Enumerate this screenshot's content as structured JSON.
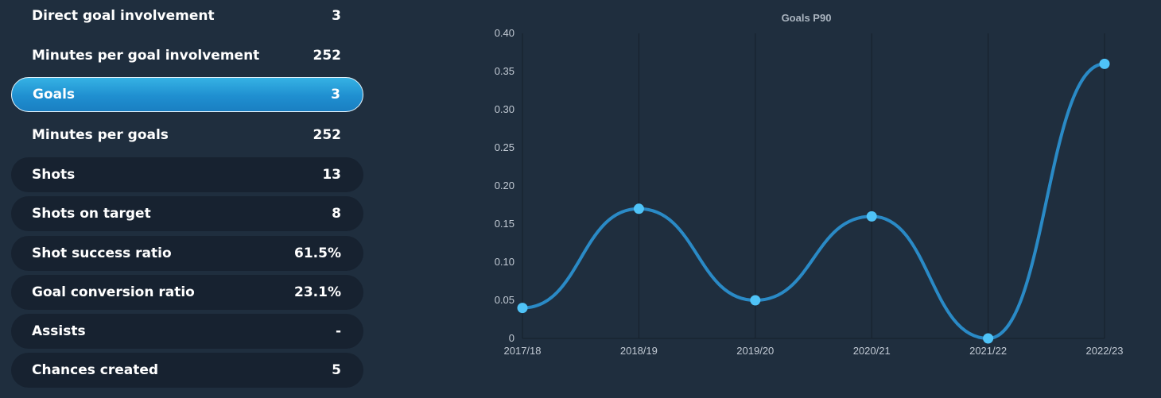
{
  "stats": [
    {
      "label": "Direct goal involvement",
      "value": "3",
      "style": "plain"
    },
    {
      "label": "Minutes per goal involvement",
      "value": "252",
      "style": "plain"
    },
    {
      "label": "Goals",
      "value": "3",
      "style": "active"
    },
    {
      "label": "Minutes per goals",
      "value": "252",
      "style": "plain"
    },
    {
      "label": "Shots",
      "value": "13",
      "style": "pill"
    },
    {
      "label": "Shots on target",
      "value": "8",
      "style": "pill"
    },
    {
      "label": "Shot success ratio",
      "value": "61.5%",
      "style": "pill"
    },
    {
      "label": "Goal conversion ratio",
      "value": "23.1%",
      "style": "pill"
    },
    {
      "label": "Assists",
      "value": "-",
      "style": "pill"
    },
    {
      "label": "Chances created",
      "value": "5",
      "style": "pill"
    }
  ],
  "chart_data": {
    "type": "line",
    "title": "Goals P90",
    "categories": [
      "2017/18",
      "2018/19",
      "2019/20",
      "2020/21",
      "2021/22",
      "2022/23"
    ],
    "series": [
      {
        "values": [
          0.04,
          0.17,
          0.05,
          0.16,
          0.0,
          0.36
        ]
      }
    ],
    "ylim": [
      0,
      0.4
    ],
    "yticks": [
      "0",
      "0.05",
      "0.10",
      "0.15",
      "0.20",
      "0.25",
      "0.30",
      "0.35",
      "0.40"
    ],
    "xlabel": "",
    "ylabel": "",
    "grid": "vertical",
    "line_color": "#2a8ac6",
    "marker_color": "#4fc3f7"
  }
}
